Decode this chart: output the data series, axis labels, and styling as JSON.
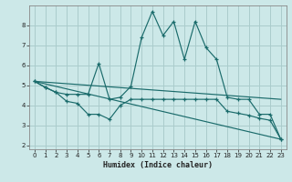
{
  "xlabel": "Humidex (Indice chaleur)",
  "bg_color": "#cce8e8",
  "grid_color": "#aacccc",
  "line_color": "#1a6b6b",
  "xlim": [
    -0.5,
    23.5
  ],
  "ylim": [
    1.8,
    9.0
  ],
  "yticks": [
    2,
    3,
    4,
    5,
    6,
    7,
    8
  ],
  "xticks": [
    0,
    1,
    2,
    3,
    4,
    5,
    6,
    7,
    8,
    9,
    10,
    11,
    12,
    13,
    14,
    15,
    16,
    17,
    18,
    19,
    20,
    21,
    22,
    23
  ],
  "lines": [
    {
      "x": [
        0,
        1,
        2,
        3,
        4,
        5,
        6,
        7,
        8,
        9,
        10,
        11,
        12,
        13,
        14,
        15,
        16,
        17,
        18,
        19,
        20,
        21,
        22,
        23
      ],
      "y": [
        5.2,
        4.9,
        4.65,
        4.55,
        4.55,
        4.55,
        6.1,
        4.3,
        4.4,
        4.95,
        7.4,
        8.7,
        7.5,
        8.2,
        6.3,
        8.2,
        6.9,
        6.3,
        4.4,
        4.3,
        4.3,
        3.55,
        3.55,
        2.3
      ],
      "marker": true
    },
    {
      "x": [
        0,
        1,
        2,
        3,
        4,
        5,
        6,
        7,
        8,
        9,
        10,
        11,
        12,
        13,
        14,
        15,
        16,
        17,
        18,
        19,
        20,
        21,
        22,
        23
      ],
      "y": [
        5.2,
        4.9,
        4.65,
        4.2,
        4.1,
        3.55,
        3.55,
        3.3,
        4.0,
        4.3,
        4.3,
        4.3,
        4.3,
        4.3,
        4.3,
        4.3,
        4.3,
        4.3,
        3.7,
        3.6,
        3.5,
        3.35,
        3.25,
        2.3
      ],
      "marker": true
    },
    {
      "x": [
        0,
        23
      ],
      "y": [
        5.2,
        2.3
      ],
      "marker": false
    },
    {
      "x": [
        0,
        23
      ],
      "y": [
        5.2,
        4.3
      ],
      "marker": false
    }
  ]
}
